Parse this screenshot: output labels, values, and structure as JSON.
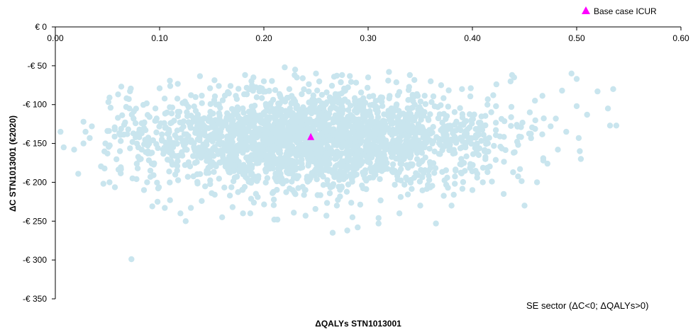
{
  "chart_data": {
    "type": "scatter",
    "xlabel": "ΔQALYs STN1013001",
    "ylabel": "ΔC STN1013001 (€2020)",
    "xlim": [
      0,
      0.6
    ],
    "ylim": [
      -350,
      0
    ],
    "x_ticks": [
      0,
      0.1,
      0.2,
      0.3,
      0.4,
      0.5,
      0.6
    ],
    "x_tick_labels": [
      "0.00",
      "0.10",
      "0.20",
      "0.30",
      "0.40",
      "0.50",
      "0.60"
    ],
    "y_ticks": [
      0,
      -50,
      -100,
      -150,
      -200,
      -250,
      -300,
      -350
    ],
    "y_tick_labels": [
      "€ 0",
      "-€ 50",
      "-€ 100",
      "-€ 150",
      "-€ 200",
      "-€ 250",
      "-€ 300",
      "-€ 350"
    ],
    "legend": {
      "position": "top-right",
      "entries": [
        {
          "label": "Base case ICUR",
          "marker": "triangle",
          "color": "#ff00ff"
        }
      ]
    },
    "annotation": "SE sector (ΔC<0; ΔQALYs>0)",
    "grid": false,
    "series": [
      {
        "marker": "circle",
        "color": "#c9e5ee",
        "note_points": "approx. 5000 PSA iterations; cloud centred near (0.25, -145)",
        "points": [
          [
            0.005,
            -135
          ],
          [
            0.008,
            -155
          ],
          [
            0.018,
            -158
          ],
          [
            0.022,
            -189
          ],
          [
            0.027,
            -122
          ],
          [
            0.029,
            -135
          ],
          [
            0.027,
            -150
          ],
          [
            0.035,
            -128
          ],
          [
            0.033,
            -143
          ],
          [
            0.048,
            -150
          ],
          [
            0.05,
            -163
          ],
          [
            0.05,
            -134
          ],
          [
            0.052,
            -200
          ],
          [
            0.052,
            -91
          ],
          [
            0.053,
            -104
          ],
          [
            0.057,
            -132
          ],
          [
            0.06,
            -117
          ],
          [
            0.062,
            -160
          ],
          [
            0.063,
            -183
          ],
          [
            0.066,
            -126
          ],
          [
            0.069,
            -138
          ],
          [
            0.071,
            -105
          ],
          [
            0.073,
            -299
          ],
          [
            0.074,
            -195
          ],
          [
            0.075,
            -118
          ],
          [
            0.077,
            -142
          ],
          [
            0.079,
            -182
          ],
          [
            0.082,
            -170
          ],
          [
            0.085,
            -210
          ],
          [
            0.088,
            -200
          ],
          [
            0.09,
            -150
          ],
          [
            0.093,
            -231
          ],
          [
            0.096,
            -105
          ],
          [
            0.098,
            -225
          ],
          [
            0.1,
            -79
          ],
          [
            0.105,
            -233
          ],
          [
            0.11,
            -223
          ],
          [
            0.115,
            -190
          ],
          [
            0.12,
            -240
          ],
          [
            0.125,
            -250
          ],
          [
            0.13,
            -233
          ],
          [
            0.15,
            -214
          ],
          [
            0.16,
            -245
          ],
          [
            0.168,
            -76
          ],
          [
            0.17,
            -232
          ],
          [
            0.18,
            -240
          ],
          [
            0.182,
            -62
          ],
          [
            0.187,
            -240
          ],
          [
            0.19,
            -65
          ],
          [
            0.2,
            -70
          ],
          [
            0.21,
            -248
          ],
          [
            0.213,
            -248
          ],
          [
            0.22,
            -52
          ],
          [
            0.23,
            -55
          ],
          [
            0.24,
            -243
          ],
          [
            0.25,
            -60
          ],
          [
            0.26,
            -243
          ],
          [
            0.266,
            -265
          ],
          [
            0.27,
            -230
          ],
          [
            0.275,
            -62
          ],
          [
            0.278,
            -82
          ],
          [
            0.28,
            -262
          ],
          [
            0.285,
            -245
          ],
          [
            0.29,
            -258
          ],
          [
            0.3,
            -65
          ],
          [
            0.31,
            -246
          ],
          [
            0.31,
            -253
          ],
          [
            0.32,
            -58
          ],
          [
            0.33,
            -240
          ],
          [
            0.34,
            -62
          ],
          [
            0.35,
            -230
          ],
          [
            0.36,
            -70
          ],
          [
            0.365,
            -253
          ],
          [
            0.37,
            -75
          ],
          [
            0.38,
            -230
          ],
          [
            0.39,
            -80
          ],
          [
            0.4,
            -210
          ],
          [
            0.41,
            -200
          ],
          [
            0.42,
            -88
          ],
          [
            0.43,
            -215
          ],
          [
            0.438,
            -62
          ],
          [
            0.44,
            -65
          ],
          [
            0.45,
            -230
          ],
          [
            0.455,
            -110
          ],
          [
            0.46,
            -95
          ],
          [
            0.462,
            -200
          ],
          [
            0.468,
            -172
          ],
          [
            0.472,
            -176
          ],
          [
            0.475,
            -128
          ],
          [
            0.48,
            -118
          ],
          [
            0.482,
            -158
          ],
          [
            0.486,
            -82
          ],
          [
            0.49,
            -135
          ],
          [
            0.495,
            -60
          ],
          [
            0.5,
            -67
          ],
          [
            0.5,
            -102
          ],
          [
            0.502,
            -143
          ],
          [
            0.503,
            -160
          ],
          [
            0.504,
            -170
          ],
          [
            0.51,
            -113
          ],
          [
            0.52,
            -83
          ],
          [
            0.53,
            -105
          ],
          [
            0.532,
            -127
          ],
          [
            0.535,
            -80
          ],
          [
            0.538,
            -127
          ]
        ]
      },
      {
        "name": "Base case ICUR",
        "marker": "triangle",
        "color": "#ff00ff",
        "points": [
          [
            0.245,
            -142
          ]
        ]
      }
    ]
  }
}
